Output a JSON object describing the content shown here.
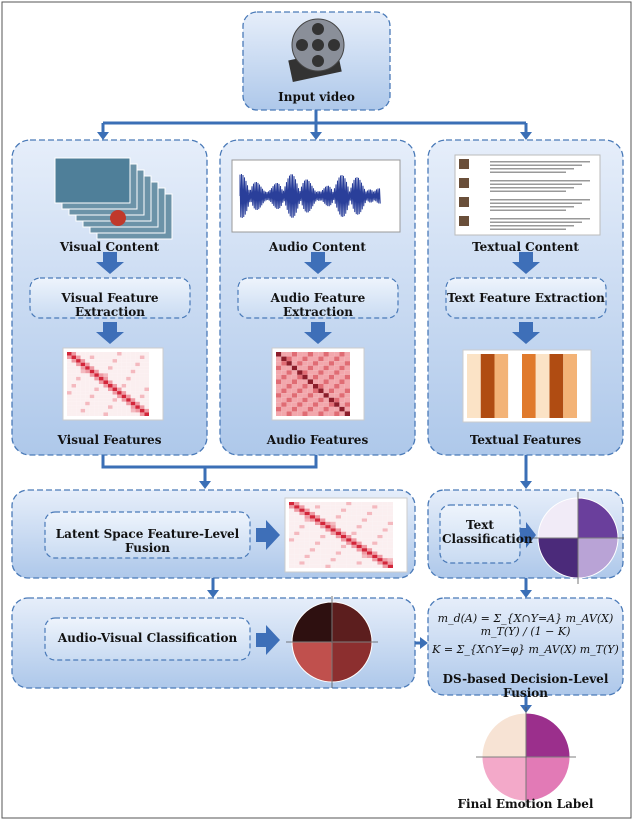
{
  "input": {
    "label": "Input video"
  },
  "columns": [
    {
      "content": "Visual Content",
      "extraction": "Visual Feature Extraction",
      "features": "Visual Features"
    },
    {
      "content": "Audio Content",
      "extraction": "Audio Feature Extraction",
      "features": "Audio Features"
    },
    {
      "content": "Textual Content",
      "extraction": "Text Feature Extraction",
      "features": "Textual Features"
    }
  ],
  "fusion": {
    "label": "Latent Space Feature-Level Fusion"
  },
  "text_classification": {
    "label": "Text Classification"
  },
  "av_classification": {
    "label": "Audio-Visual Classification"
  },
  "ds_fusion": {
    "label": "DS-based Decision-Level Fusion",
    "formulas": [
      "m_d(A) = Σ_{X∩Y=A} m_AV(X) m_T(Y) / (1 − K)",
      "K = Σ_{X∩Y=φ} m_AV(X) m_T(Y)"
    ]
  },
  "output": {
    "label": "Final Emotion Label"
  }
}
